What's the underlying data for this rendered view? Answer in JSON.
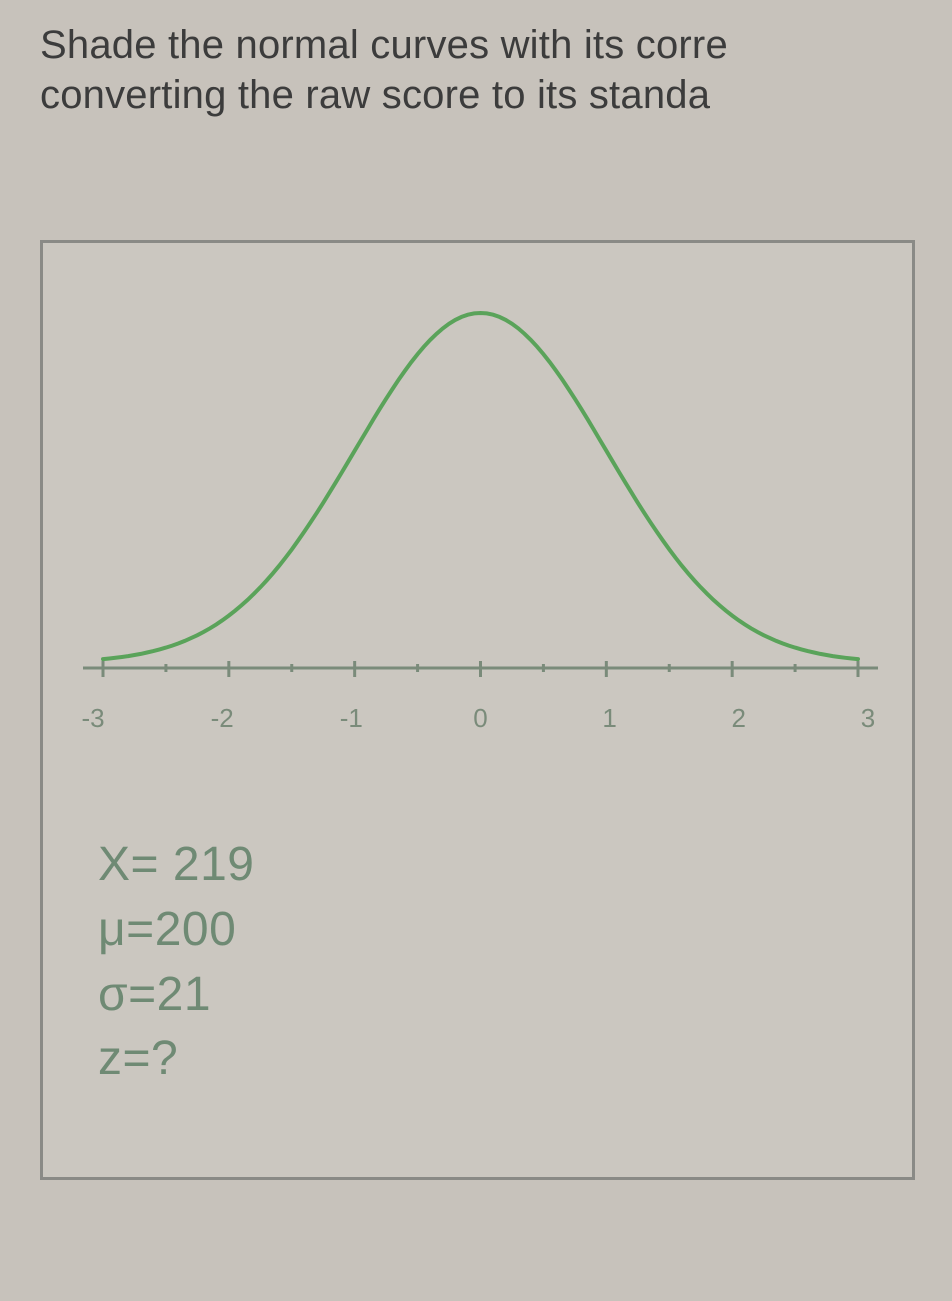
{
  "instruction": {
    "line1": "Shade the normal curves with its corre",
    "line2": "converting the raw score to its standa"
  },
  "chart": {
    "type": "bell-curve",
    "curve_color": "#5aa35a",
    "curve_stroke_width": 4,
    "axis_color": "#7a8b7a",
    "background_color": "#cbc7c0",
    "x_ticks": [
      "-3",
      "-2",
      "-1",
      "0",
      "1",
      "2",
      "3"
    ],
    "x_min": -3,
    "x_max": 3,
    "tick_label_fontsize": 26,
    "tick_label_color": "#7a8b7a"
  },
  "values": {
    "X_label": "X= 219",
    "mu_label": "μ=200",
    "sigma_label": "σ=21",
    "z_label": "z=?",
    "font_color": "#6f8a74",
    "fontsize": 48
  },
  "panel": {
    "border_color": "#8a8a86",
    "border_width": 3
  },
  "page_bg": "#c7c2bb"
}
